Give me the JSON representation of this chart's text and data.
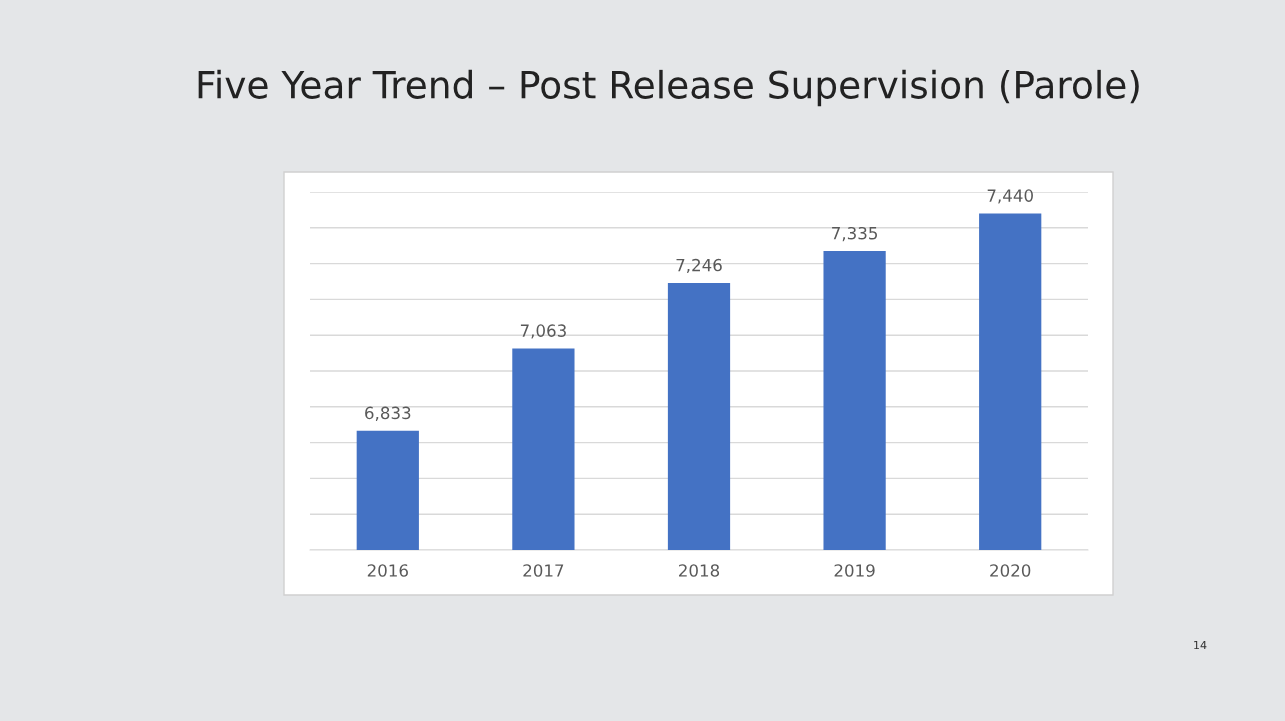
{
  "chart_data": {
    "type": "bar",
    "title": "Five Year Trend – Post Release Supervision (Parole)",
    "categories": [
      "2016",
      "2017",
      "2018",
      "2019",
      "2020"
    ],
    "values": [
      6833,
      7063,
      7246,
      7335,
      7440
    ],
    "color": "#4472c4",
    "ylim": [
      6500,
      7500
    ],
    "yticks": [
      {
        "value": 6500,
        "label": null
      },
      {
        "value": 6600,
        "label": null
      },
      {
        "value": 6700,
        "label": null
      },
      {
        "value": 6800,
        "label": null
      },
      {
        "value": 6900,
        "label": null
      },
      {
        "value": 7000,
        "label": null
      },
      {
        "value": 7100,
        "label": null
      },
      {
        "value": 7200,
        "label": null
      },
      {
        "value": 7300,
        "label": null
      },
      {
        "value": 7400,
        "label": null
      },
      {
        "value": 7500,
        "label": null
      }
    ],
    "value_labels": [
      "6,833",
      "7,063",
      "7,246",
      "7,335",
      "7,440"
    ],
    "grid": "y",
    "tick_labels": "x",
    "annotations": [
      "14"
    ]
  }
}
